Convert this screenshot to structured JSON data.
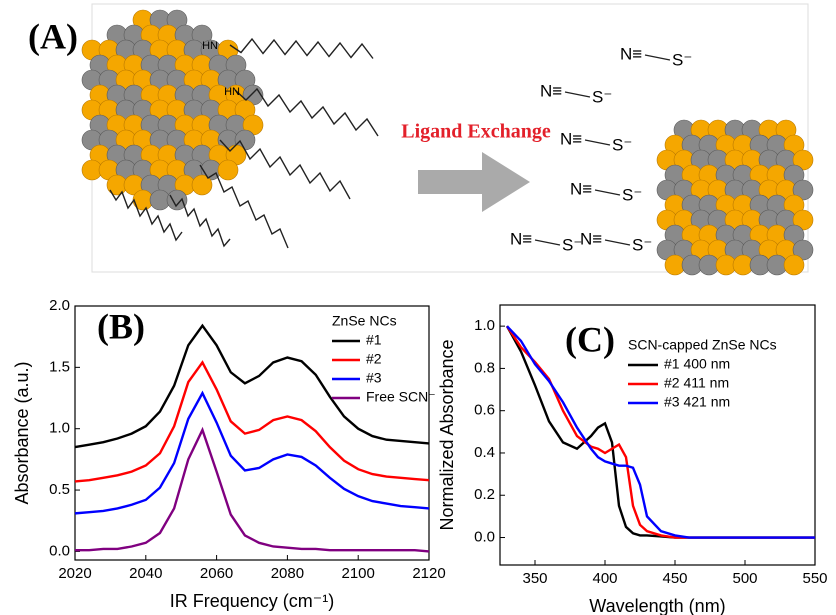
{
  "panel_a": {
    "label": "(A)",
    "arrow_label": "Ligand Exchange",
    "amine": "HN",
    "ligand_n": "N≡",
    "ligand_s": "S⁻"
  },
  "chart_data": [
    {
      "type": "line",
      "panel_label": "(B)",
      "x_label": "IR Frequency (cm⁻¹)",
      "y_label": "Absorbance (a.u.)",
      "legend_title": "ZnSe NCs",
      "x": [
        2020,
        2024,
        2028,
        2032,
        2036,
        2040,
        2044,
        2048,
        2052,
        2056,
        2060,
        2064,
        2068,
        2072,
        2076,
        2080,
        2084,
        2088,
        2092,
        2096,
        2100,
        2104,
        2108,
        2112,
        2116,
        2120
      ],
      "series": [
        {
          "name": "#1",
          "color": "#000000",
          "values": [
            0.85,
            0.87,
            0.89,
            0.92,
            0.96,
            1.02,
            1.14,
            1.35,
            1.68,
            1.84,
            1.68,
            1.46,
            1.37,
            1.43,
            1.54,
            1.58,
            1.55,
            1.44,
            1.26,
            1.1,
            1.0,
            0.94,
            0.91,
            0.9,
            0.89,
            0.88
          ]
        },
        {
          "name": "#2",
          "color": "#ff0000",
          "values": [
            0.57,
            0.58,
            0.6,
            0.62,
            0.65,
            0.7,
            0.8,
            1.02,
            1.38,
            1.54,
            1.32,
            1.06,
            0.96,
            0.99,
            1.07,
            1.1,
            1.07,
            0.98,
            0.85,
            0.74,
            0.67,
            0.63,
            0.61,
            0.6,
            0.59,
            0.58
          ]
        },
        {
          "name": "#3",
          "color": "#0000ff",
          "values": [
            0.31,
            0.32,
            0.33,
            0.35,
            0.38,
            0.42,
            0.52,
            0.72,
            1.08,
            1.29,
            1.05,
            0.78,
            0.66,
            0.68,
            0.75,
            0.79,
            0.77,
            0.7,
            0.6,
            0.51,
            0.45,
            0.41,
            0.39,
            0.37,
            0.36,
            0.35
          ]
        },
        {
          "name": "Free SCN⁻",
          "color": "#800080",
          "values": [
            0.01,
            0.01,
            0.02,
            0.02,
            0.04,
            0.07,
            0.15,
            0.35,
            0.75,
            0.99,
            0.65,
            0.3,
            0.13,
            0.07,
            0.04,
            0.03,
            0.02,
            0.02,
            0.01,
            0.01,
            0.01,
            0.01,
            0.01,
            0.01,
            0.01,
            0.0
          ]
        }
      ],
      "xlim": [
        2020,
        2120
      ],
      "xticks": [
        2020,
        2040,
        2060,
        2080,
        2100,
        2120
      ],
      "ylim": [
        -0.07,
        2.0
      ],
      "yticks": [
        {
          "value": 0,
          "label": "0.0"
        },
        {
          "value": 0.5,
          "label": "0.5"
        },
        {
          "value": 1,
          "label": "1.0"
        },
        {
          "value": 1.5,
          "label": "1.5"
        },
        {
          "value": 2,
          "label": "2.0"
        }
      ]
    },
    {
      "type": "line",
      "panel_label": "(C)",
      "x_label": "Wavelength (nm)",
      "y_label": "Normalized Absorbance",
      "legend_title": "SCN-capped ZnSe NCs",
      "x": [
        330,
        340,
        350,
        360,
        370,
        380,
        390,
        395,
        400,
        405,
        410,
        415,
        420,
        425,
        430,
        440,
        450,
        460,
        480,
        500,
        520,
        550
      ],
      "series": [
        {
          "name": "#1 400 nm",
          "color": "#000000",
          "values": [
            1.0,
            0.88,
            0.72,
            0.55,
            0.45,
            0.42,
            0.48,
            0.52,
            0.54,
            0.45,
            0.15,
            0.05,
            0.02,
            0.01,
            0.01,
            0.005,
            0,
            0,
            0,
            0,
            0,
            0
          ]
        },
        {
          "name": "#2 411 nm",
          "color": "#ff0000",
          "values": [
            1.0,
            0.9,
            0.83,
            0.75,
            0.6,
            0.48,
            0.43,
            0.42,
            0.4,
            0.42,
            0.44,
            0.38,
            0.15,
            0.06,
            0.03,
            0.01,
            0,
            0,
            0,
            0,
            0,
            0
          ]
        },
        {
          "name": "#3 421 nm",
          "color": "#0000ff",
          "values": [
            1.0,
            0.93,
            0.82,
            0.74,
            0.64,
            0.52,
            0.42,
            0.38,
            0.36,
            0.35,
            0.34,
            0.34,
            0.33,
            0.25,
            0.1,
            0.03,
            0.01,
            0,
            0,
            0,
            0,
            0
          ]
        }
      ],
      "xlim": [
        325,
        550
      ],
      "xticks": [
        350,
        400,
        450,
        500,
        550
      ],
      "ylim": [
        -0.13,
        1.1
      ],
      "yticks": [
        {
          "value": 0,
          "label": "0.0"
        },
        {
          "value": 0.2,
          "label": "0.2"
        },
        {
          "value": 0.4,
          "label": "0.4"
        },
        {
          "value": 0.6,
          "label": "0.6"
        },
        {
          "value": 0.8,
          "label": "0.8"
        },
        {
          "value": 1,
          "label": "1.0"
        }
      ]
    }
  ]
}
